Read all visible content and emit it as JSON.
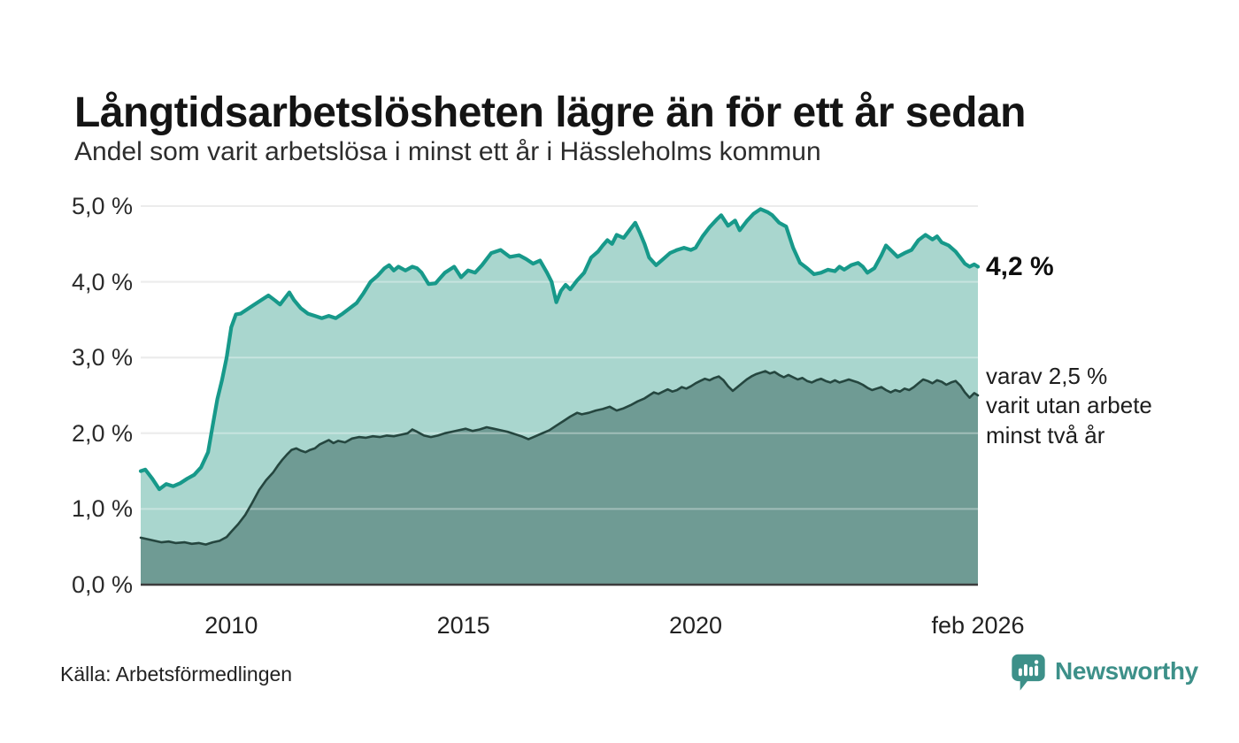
{
  "header": {
    "title": "Långtidsarbetslösheten lägre än för ett år sedan",
    "subtitle": "Andel som varit arbetslösa i minst ett år i Hässleholms kommun"
  },
  "footer": {
    "source": "Källa: Arbetsförmedlingen",
    "brand": "Newsworthy"
  },
  "colors": {
    "line_total": "#17998a",
    "fill_total": "#a9d6ce",
    "line_two_year": "#25463f",
    "fill_two_year": "#6f9b94",
    "grid": "#e2e2e2",
    "grid_over_fill": "rgba(255,255,255,0.35)",
    "baseline": "#3c3c3c",
    "brand_teal": "#3d9089",
    "text_dark": "#1a1a1a"
  },
  "chart_data": {
    "type": "area",
    "title": "Långtidsarbetslösheten lägre än för ett år sedan",
    "subtitle": "Andel som varit arbetslösa i minst ett år i Hässleholms kommun",
    "xlabel": "",
    "ylabel": "",
    "x_range": [
      2008.05,
      2026.08
    ],
    "ylim": [
      0,
      5
    ],
    "grid": "horizontal",
    "legend": "none, labelled by end-of-line annotations",
    "y_axis": {
      "ticks": [
        {
          "label": "0,0 %",
          "value": 0
        },
        {
          "label": "1,0 %",
          "value": 1
        },
        {
          "label": "2,0 %",
          "value": 2
        },
        {
          "label": "3,0 %",
          "value": 3
        },
        {
          "label": "4,0 %",
          "value": 4
        },
        {
          "label": "5,0 %",
          "value": 5
        }
      ]
    },
    "x_axis": {
      "ticks": [
        {
          "label": "2010",
          "value": 2010
        },
        {
          "label": "2015",
          "value": 2015
        },
        {
          "label": "2020",
          "value": 2020
        },
        {
          "label": "feb 2026",
          "value": 2026.08
        }
      ]
    },
    "annotations": {
      "latest_total": "4,2 %",
      "two_year_note": "varav 2,5 %\nvarit utan arbete\nminst två år"
    },
    "series": [
      {
        "name": "Andel arbetslösa minst ett år",
        "last_value": 4.2,
        "points": [
          [
            2008.05,
            1.5
          ],
          [
            2008.15,
            1.52
          ],
          [
            2008.3,
            1.4
          ],
          [
            2008.45,
            1.26
          ],
          [
            2008.6,
            1.33
          ],
          [
            2008.75,
            1.3
          ],
          [
            2008.9,
            1.34
          ],
          [
            2009.05,
            1.4
          ],
          [
            2009.2,
            1.45
          ],
          [
            2009.35,
            1.55
          ],
          [
            2009.5,
            1.75
          ],
          [
            2009.6,
            2.1
          ],
          [
            2009.7,
            2.45
          ],
          [
            2009.8,
            2.7
          ],
          [
            2009.9,
            3.0
          ],
          [
            2010.0,
            3.4
          ],
          [
            2010.1,
            3.57
          ],
          [
            2010.2,
            3.58
          ],
          [
            2010.3,
            3.62
          ],
          [
            2010.5,
            3.7
          ],
          [
            2010.65,
            3.76
          ],
          [
            2010.8,
            3.82
          ],
          [
            2010.95,
            3.75
          ],
          [
            2011.05,
            3.7
          ],
          [
            2011.15,
            3.78
          ],
          [
            2011.25,
            3.86
          ],
          [
            2011.35,
            3.76
          ],
          [
            2011.5,
            3.65
          ],
          [
            2011.65,
            3.58
          ],
          [
            2011.8,
            3.55
          ],
          [
            2011.95,
            3.52
          ],
          [
            2012.1,
            3.55
          ],
          [
            2012.25,
            3.52
          ],
          [
            2012.4,
            3.58
          ],
          [
            2012.55,
            3.65
          ],
          [
            2012.7,
            3.72
          ],
          [
            2012.85,
            3.85
          ],
          [
            2013.0,
            4.0
          ],
          [
            2013.15,
            4.08
          ],
          [
            2013.3,
            4.18
          ],
          [
            2013.4,
            4.22
          ],
          [
            2013.5,
            4.15
          ],
          [
            2013.6,
            4.2
          ],
          [
            2013.75,
            4.15
          ],
          [
            2013.9,
            4.2
          ],
          [
            2014.0,
            4.18
          ],
          [
            2014.1,
            4.12
          ],
          [
            2014.25,
            3.97
          ],
          [
            2014.4,
            3.98
          ],
          [
            2014.5,
            4.05
          ],
          [
            2014.6,
            4.12
          ],
          [
            2014.8,
            4.2
          ],
          [
            2014.95,
            4.06
          ],
          [
            2015.1,
            4.15
          ],
          [
            2015.25,
            4.12
          ],
          [
            2015.4,
            4.22
          ],
          [
            2015.6,
            4.38
          ],
          [
            2015.8,
            4.42
          ],
          [
            2016.0,
            4.33
          ],
          [
            2016.2,
            4.35
          ],
          [
            2016.35,
            4.3
          ],
          [
            2016.5,
            4.24
          ],
          [
            2016.65,
            4.28
          ],
          [
            2016.8,
            4.12
          ],
          [
            2016.9,
            4.0
          ],
          [
            2017.0,
            3.73
          ],
          [
            2017.1,
            3.88
          ],
          [
            2017.2,
            3.96
          ],
          [
            2017.3,
            3.9
          ],
          [
            2017.45,
            4.02
          ],
          [
            2017.6,
            4.12
          ],
          [
            2017.75,
            4.32
          ],
          [
            2017.9,
            4.4
          ],
          [
            2018.0,
            4.48
          ],
          [
            2018.1,
            4.55
          ],
          [
            2018.2,
            4.5
          ],
          [
            2018.3,
            4.62
          ],
          [
            2018.45,
            4.58
          ],
          [
            2018.6,
            4.7
          ],
          [
            2018.7,
            4.78
          ],
          [
            2018.8,
            4.65
          ],
          [
            2018.9,
            4.5
          ],
          [
            2019.0,
            4.32
          ],
          [
            2019.15,
            4.22
          ],
          [
            2019.3,
            4.3
          ],
          [
            2019.45,
            4.38
          ],
          [
            2019.6,
            4.42
          ],
          [
            2019.75,
            4.45
          ],
          [
            2019.9,
            4.42
          ],
          [
            2020.0,
            4.45
          ],
          [
            2020.15,
            4.6
          ],
          [
            2020.3,
            4.72
          ],
          [
            2020.45,
            4.82
          ],
          [
            2020.55,
            4.88
          ],
          [
            2020.7,
            4.74
          ],
          [
            2020.85,
            4.81
          ],
          [
            2020.95,
            4.68
          ],
          [
            2021.1,
            4.8
          ],
          [
            2021.25,
            4.9
          ],
          [
            2021.4,
            4.96
          ],
          [
            2021.55,
            4.92
          ],
          [
            2021.65,
            4.88
          ],
          [
            2021.8,
            4.78
          ],
          [
            2021.95,
            4.73
          ],
          [
            2022.1,
            4.45
          ],
          [
            2022.25,
            4.25
          ],
          [
            2022.4,
            4.18
          ],
          [
            2022.55,
            4.1
          ],
          [
            2022.7,
            4.12
          ],
          [
            2022.85,
            4.16
          ],
          [
            2023.0,
            4.14
          ],
          [
            2023.1,
            4.2
          ],
          [
            2023.2,
            4.16
          ],
          [
            2023.35,
            4.22
          ],
          [
            2023.5,
            4.25
          ],
          [
            2023.6,
            4.2
          ],
          [
            2023.7,
            4.12
          ],
          [
            2023.85,
            4.18
          ],
          [
            2024.0,
            4.35
          ],
          [
            2024.1,
            4.48
          ],
          [
            2024.2,
            4.42
          ],
          [
            2024.35,
            4.33
          ],
          [
            2024.5,
            4.38
          ],
          [
            2024.65,
            4.42
          ],
          [
            2024.8,
            4.55
          ],
          [
            2024.95,
            4.62
          ],
          [
            2025.1,
            4.56
          ],
          [
            2025.2,
            4.6
          ],
          [
            2025.3,
            4.52
          ],
          [
            2025.45,
            4.48
          ],
          [
            2025.6,
            4.4
          ],
          [
            2025.7,
            4.32
          ],
          [
            2025.8,
            4.24
          ],
          [
            2025.9,
            4.2
          ],
          [
            2026.0,
            4.23
          ],
          [
            2026.08,
            4.2
          ]
        ]
      },
      {
        "name": "varav arbetslösa minst två år",
        "last_value": 2.5,
        "points": [
          [
            2008.05,
            0.62
          ],
          [
            2008.2,
            0.6
          ],
          [
            2008.35,
            0.58
          ],
          [
            2008.5,
            0.56
          ],
          [
            2008.65,
            0.57
          ],
          [
            2008.8,
            0.55
          ],
          [
            2009.0,
            0.56
          ],
          [
            2009.15,
            0.54
          ],
          [
            2009.3,
            0.55
          ],
          [
            2009.45,
            0.53
          ],
          [
            2009.6,
            0.56
          ],
          [
            2009.75,
            0.58
          ],
          [
            2009.9,
            0.63
          ],
          [
            2010.0,
            0.7
          ],
          [
            2010.15,
            0.8
          ],
          [
            2010.3,
            0.92
          ],
          [
            2010.45,
            1.08
          ],
          [
            2010.6,
            1.25
          ],
          [
            2010.75,
            1.38
          ],
          [
            2010.9,
            1.48
          ],
          [
            2011.0,
            1.57
          ],
          [
            2011.1,
            1.65
          ],
          [
            2011.2,
            1.72
          ],
          [
            2011.3,
            1.78
          ],
          [
            2011.4,
            1.8
          ],
          [
            2011.5,
            1.77
          ],
          [
            2011.6,
            1.75
          ],
          [
            2011.7,
            1.78
          ],
          [
            2011.8,
            1.8
          ],
          [
            2011.9,
            1.85
          ],
          [
            2012.0,
            1.88
          ],
          [
            2012.1,
            1.91
          ],
          [
            2012.2,
            1.87
          ],
          [
            2012.3,
            1.9
          ],
          [
            2012.45,
            1.88
          ],
          [
            2012.6,
            1.93
          ],
          [
            2012.75,
            1.95
          ],
          [
            2012.9,
            1.94
          ],
          [
            2013.05,
            1.96
          ],
          [
            2013.2,
            1.95
          ],
          [
            2013.35,
            1.97
          ],
          [
            2013.5,
            1.96
          ],
          [
            2013.65,
            1.98
          ],
          [
            2013.8,
            2.0
          ],
          [
            2013.9,
            2.05
          ],
          [
            2014.0,
            2.02
          ],
          [
            2014.15,
            1.97
          ],
          [
            2014.3,
            1.95
          ],
          [
            2014.45,
            1.97
          ],
          [
            2014.6,
            2.0
          ],
          [
            2014.75,
            2.02
          ],
          [
            2014.9,
            2.04
          ],
          [
            2015.05,
            2.06
          ],
          [
            2015.2,
            2.03
          ],
          [
            2015.35,
            2.05
          ],
          [
            2015.5,
            2.08
          ],
          [
            2015.65,
            2.06
          ],
          [
            2015.8,
            2.04
          ],
          [
            2015.95,
            2.02
          ],
          [
            2016.1,
            1.99
          ],
          [
            2016.25,
            1.96
          ],
          [
            2016.4,
            1.92
          ],
          [
            2016.55,
            1.96
          ],
          [
            2016.7,
            2.0
          ],
          [
            2016.85,
            2.04
          ],
          [
            2017.0,
            2.1
          ],
          [
            2017.15,
            2.16
          ],
          [
            2017.3,
            2.22
          ],
          [
            2017.45,
            2.27
          ],
          [
            2017.55,
            2.25
          ],
          [
            2017.7,
            2.27
          ],
          [
            2017.85,
            2.3
          ],
          [
            2018.0,
            2.32
          ],
          [
            2018.15,
            2.35
          ],
          [
            2018.3,
            2.3
          ],
          [
            2018.45,
            2.33
          ],
          [
            2018.6,
            2.37
          ],
          [
            2018.75,
            2.42
          ],
          [
            2018.9,
            2.46
          ],
          [
            2019.0,
            2.5
          ],
          [
            2019.1,
            2.54
          ],
          [
            2019.2,
            2.52
          ],
          [
            2019.3,
            2.55
          ],
          [
            2019.4,
            2.58
          ],
          [
            2019.5,
            2.55
          ],
          [
            2019.6,
            2.57
          ],
          [
            2019.7,
            2.61
          ],
          [
            2019.8,
            2.59
          ],
          [
            2019.9,
            2.62
          ],
          [
            2020.0,
            2.66
          ],
          [
            2020.1,
            2.69
          ],
          [
            2020.2,
            2.72
          ],
          [
            2020.3,
            2.7
          ],
          [
            2020.4,
            2.73
          ],
          [
            2020.5,
            2.75
          ],
          [
            2020.6,
            2.7
          ],
          [
            2020.7,
            2.62
          ],
          [
            2020.8,
            2.56
          ],
          [
            2020.9,
            2.61
          ],
          [
            2021.0,
            2.66
          ],
          [
            2021.1,
            2.71
          ],
          [
            2021.2,
            2.75
          ],
          [
            2021.3,
            2.78
          ],
          [
            2021.4,
            2.8
          ],
          [
            2021.5,
            2.82
          ],
          [
            2021.6,
            2.79
          ],
          [
            2021.7,
            2.81
          ],
          [
            2021.8,
            2.77
          ],
          [
            2021.9,
            2.74
          ],
          [
            2022.0,
            2.77
          ],
          [
            2022.1,
            2.74
          ],
          [
            2022.2,
            2.71
          ],
          [
            2022.3,
            2.73
          ],
          [
            2022.4,
            2.69
          ],
          [
            2022.5,
            2.67
          ],
          [
            2022.6,
            2.7
          ],
          [
            2022.7,
            2.72
          ],
          [
            2022.8,
            2.69
          ],
          [
            2022.9,
            2.67
          ],
          [
            2023.0,
            2.7
          ],
          [
            2023.1,
            2.67
          ],
          [
            2023.2,
            2.69
          ],
          [
            2023.3,
            2.71
          ],
          [
            2023.4,
            2.69
          ],
          [
            2023.5,
            2.67
          ],
          [
            2023.6,
            2.64
          ],
          [
            2023.7,
            2.6
          ],
          [
            2023.8,
            2.57
          ],
          [
            2023.9,
            2.59
          ],
          [
            2024.0,
            2.61
          ],
          [
            2024.1,
            2.57
          ],
          [
            2024.2,
            2.54
          ],
          [
            2024.3,
            2.57
          ],
          [
            2024.4,
            2.55
          ],
          [
            2024.5,
            2.59
          ],
          [
            2024.6,
            2.57
          ],
          [
            2024.7,
            2.61
          ],
          [
            2024.8,
            2.66
          ],
          [
            2024.9,
            2.71
          ],
          [
            2025.0,
            2.69
          ],
          [
            2025.1,
            2.66
          ],
          [
            2025.2,
            2.7
          ],
          [
            2025.3,
            2.68
          ],
          [
            2025.4,
            2.64
          ],
          [
            2025.5,
            2.67
          ],
          [
            2025.6,
            2.69
          ],
          [
            2025.7,
            2.63
          ],
          [
            2025.8,
            2.54
          ],
          [
            2025.9,
            2.47
          ],
          [
            2026.0,
            2.53
          ],
          [
            2026.08,
            2.5
          ]
        ]
      }
    ]
  }
}
